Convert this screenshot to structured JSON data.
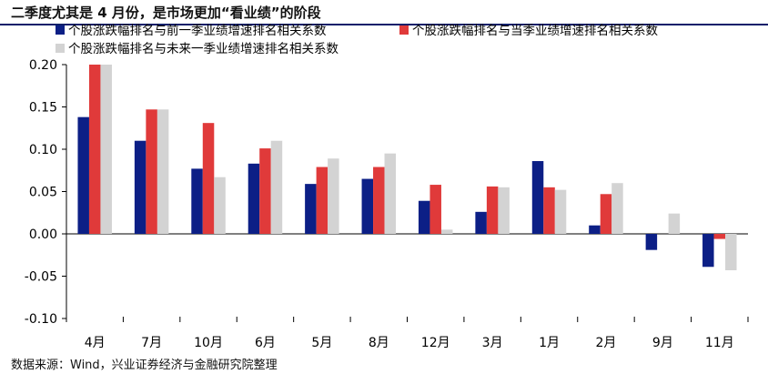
{
  "header": {
    "title": "二季度尤其是 4 月份，是市场更加“看业绩”的阶段"
  },
  "source": "数据来源：Wind，兴业证券经济与金融研究院整理",
  "colors": {
    "navy": "#0c1f86",
    "red": "#e03a3a",
    "gray": "#d3d3d3",
    "title_rule": "#0a1f6a"
  },
  "chart_data": {
    "type": "bar",
    "categories": [
      "4月",
      "7月",
      "10月",
      "6月",
      "5月",
      "8月",
      "12月",
      "3月",
      "1月",
      "2月",
      "9月",
      "11月"
    ],
    "series": [
      {
        "name": "个股涨跌幅排名与前一季业绩增速排名相关系数",
        "color": "#0c1f86",
        "values": [
          0.138,
          0.11,
          0.077,
          0.083,
          0.059,
          0.065,
          0.039,
          0.026,
          0.086,
          0.01,
          -0.019,
          -0.039
        ]
      },
      {
        "name": "个股涨跌幅排名与当季业绩增速排名相关系数",
        "color": "#e03a3a",
        "values": [
          0.2,
          0.147,
          0.131,
          0.101,
          0.079,
          0.079,
          0.058,
          0.056,
          0.055,
          0.047,
          0.0,
          -0.006
        ]
      },
      {
        "name": "个股涨跌幅排名与未来一季业绩增速排名相关系数",
        "color": "#d3d3d3",
        "values": [
          0.2,
          0.147,
          0.067,
          0.11,
          0.089,
          0.095,
          0.005,
          0.055,
          0.052,
          0.06,
          0.024,
          -0.043
        ]
      }
    ],
    "yticks": [
      "0.20",
      "0.15",
      "0.10",
      "0.05",
      "0.00",
      "-0.05",
      "-0.10"
    ],
    "ylim": [
      -0.1,
      0.2
    ],
    "legend_position": "top",
    "grid": false
  }
}
